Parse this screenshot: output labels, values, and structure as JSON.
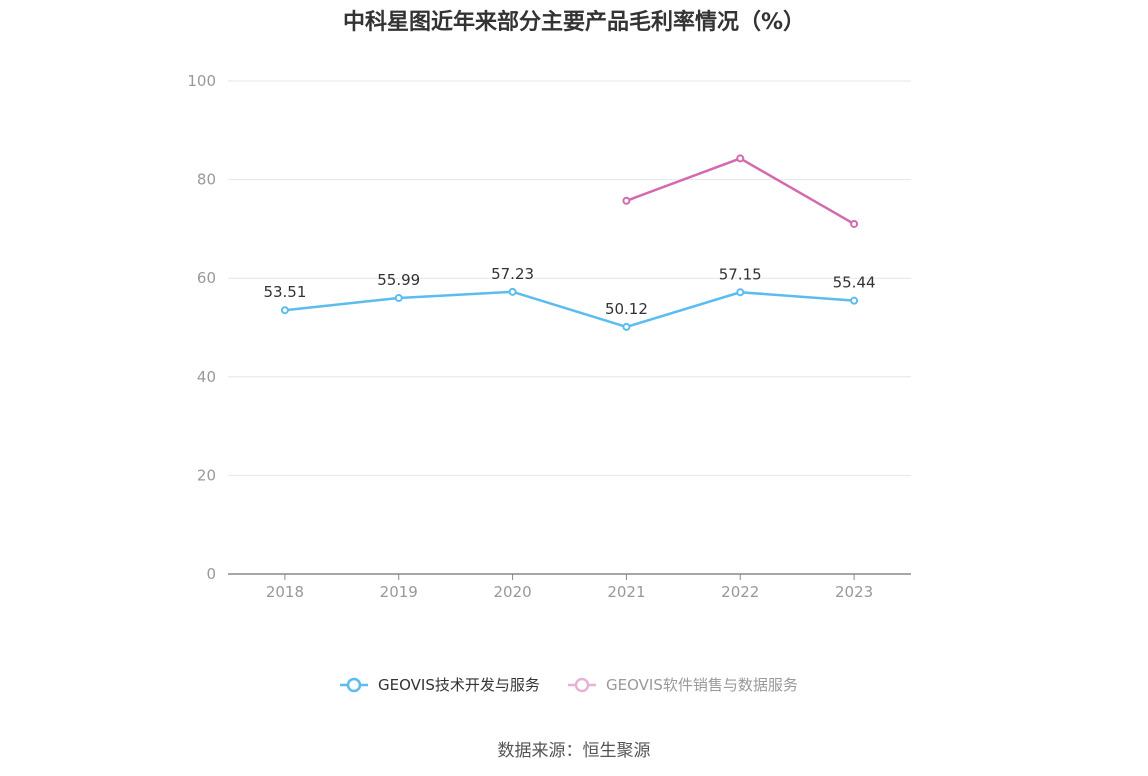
{
  "title": "中科星图近年来部分主要产品毛利率情况（%）",
  "source": "数据来源：恒生聚源",
  "chart_data": {
    "type": "line",
    "title": "中科星图近年来部分主要产品毛利率情况（%）",
    "categories": [
      "2018",
      "2019",
      "2020",
      "2021",
      "2022",
      "2023"
    ],
    "ylim": [
      0,
      100
    ],
    "yticks": [
      0,
      20,
      40,
      60,
      80,
      100
    ],
    "grid": true,
    "legend_position": "bottom-center",
    "series": [
      {
        "name": "GEOVIS技术开发与服务",
        "color": "#5bbcf0",
        "values": [
          53.51,
          55.99,
          57.23,
          50.12,
          57.15,
          55.44
        ],
        "show_labels": true
      },
      {
        "name": "GEOVIS软件销售与数据服务",
        "color": "#d36aae",
        "values": [
          null,
          null,
          null,
          75.7,
          84.3,
          71.0
        ],
        "show_labels": false
      }
    ]
  }
}
